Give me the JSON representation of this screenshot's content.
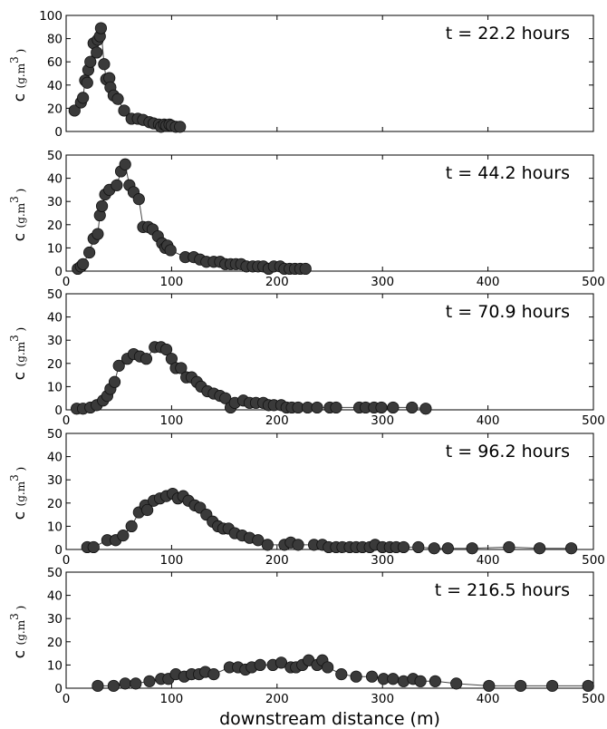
{
  "chart_data": {
    "type": "scatter",
    "xlabel": "downstream distance (m)",
    "ylabel": "c",
    "ylabel_unit": "(g.m",
    "ylabel_unit_exp": "3",
    "ylabel_unit_close": ")",
    "xlim": [
      0,
      500
    ],
    "xticks": [
      "0",
      "100",
      "200",
      "300",
      "400",
      "500"
    ],
    "marker_color": "#3a3a3a",
    "line_color": "#444444",
    "panels": [
      {
        "title": "t = 22.2 hours",
        "ylim": [
          0,
          100
        ],
        "yticks": [
          "0",
          "20",
          "40",
          "60",
          "80",
          "100"
        ],
        "show_xtick_labels": false,
        "points": [
          [
            8,
            18
          ],
          [
            14,
            25
          ],
          [
            16,
            29
          ],
          [
            18,
            44
          ],
          [
            20,
            42
          ],
          [
            21,
            53
          ],
          [
            23,
            60
          ],
          [
            26,
            76
          ],
          [
            29,
            68
          ],
          [
            30,
            79
          ],
          [
            32,
            82
          ],
          [
            33,
            89
          ],
          [
            36,
            58
          ],
          [
            38,
            45
          ],
          [
            41,
            46
          ],
          [
            42,
            38
          ],
          [
            45,
            31
          ],
          [
            49,
            28
          ],
          [
            55,
            18
          ],
          [
            62,
            11
          ],
          [
            68,
            11
          ],
          [
            73,
            10
          ],
          [
            79,
            8
          ],
          [
            83,
            7
          ],
          [
            88,
            6
          ],
          [
            90,
            4
          ],
          [
            93,
            6
          ],
          [
            95,
            5
          ],
          [
            98,
            6
          ],
          [
            100,
            5
          ],
          [
            104,
            4
          ],
          [
            108,
            4
          ]
        ]
      },
      {
        "title": "t = 44.2 hours",
        "ylim": [
          0,
          50
        ],
        "yticks": [
          "0",
          "10",
          "20",
          "30",
          "40",
          "50"
        ],
        "show_xtick_labels": true,
        "points": [
          [
            11,
            1
          ],
          [
            14,
            2
          ],
          [
            16,
            3
          ],
          [
            22,
            8
          ],
          [
            26,
            14
          ],
          [
            30,
            16
          ],
          [
            32,
            24
          ],
          [
            34,
            28
          ],
          [
            37,
            33
          ],
          [
            41,
            35
          ],
          [
            48,
            37
          ],
          [
            52,
            43
          ],
          [
            56,
            46
          ],
          [
            60,
            37
          ],
          [
            64,
            34
          ],
          [
            69,
            31
          ],
          [
            73,
            19
          ],
          [
            78,
            19
          ],
          [
            82,
            18
          ],
          [
            87,
            15
          ],
          [
            91,
            12
          ],
          [
            94,
            10
          ],
          [
            96,
            11
          ],
          [
            99,
            9
          ],
          [
            113,
            6
          ],
          [
            121,
            6
          ],
          [
            127,
            5
          ],
          [
            133,
            4
          ],
          [
            140,
            4
          ],
          [
            146,
            4
          ],
          [
            151,
            3
          ],
          [
            156,
            3
          ],
          [
            161,
            3
          ],
          [
            166,
            3
          ],
          [
            171,
            2
          ],
          [
            177,
            2
          ],
          [
            182,
            2
          ],
          [
            187,
            2
          ],
          [
            192,
            1
          ],
          [
            197,
            2
          ],
          [
            203,
            2
          ],
          [
            207,
            1
          ],
          [
            212,
            1
          ],
          [
            217,
            1
          ],
          [
            222,
            1
          ],
          [
            227,
            1
          ]
        ]
      },
      {
        "title": "t = 70.9 hours",
        "ylim": [
          0,
          50
        ],
        "yticks": [
          "0",
          "10",
          "20",
          "30",
          "40",
          "50"
        ],
        "show_xtick_labels": true,
        "points": [
          [
            10,
            0.5
          ],
          [
            16,
            0.5
          ],
          [
            23,
            1
          ],
          [
            29,
            2
          ],
          [
            35,
            4
          ],
          [
            39,
            6
          ],
          [
            42,
            9
          ],
          [
            46,
            12
          ],
          [
            50,
            19
          ],
          [
            58,
            22
          ],
          [
            64,
            24
          ],
          [
            70,
            23
          ],
          [
            76,
            22
          ],
          [
            84,
            27
          ],
          [
            90,
            27
          ],
          [
            95,
            26
          ],
          [
            100,
            22
          ],
          [
            104,
            18
          ],
          [
            109,
            18
          ],
          [
            114,
            14
          ],
          [
            119,
            14
          ],
          [
            124,
            12
          ],
          [
            128,
            10
          ],
          [
            134,
            8
          ],
          [
            140,
            7
          ],
          [
            146,
            6
          ],
          [
            151,
            5
          ],
          [
            156,
            1
          ],
          [
            160,
            3
          ],
          [
            168,
            4
          ],
          [
            174,
            3
          ],
          [
            180,
            3
          ],
          [
            187,
            3
          ],
          [
            192,
            2
          ],
          [
            197,
            2
          ],
          [
            204,
            2
          ],
          [
            209,
            1
          ],
          [
            214,
            1
          ],
          [
            220,
            1
          ],
          [
            229,
            1
          ],
          [
            238,
            1
          ],
          [
            250,
            1
          ],
          [
            256,
            1
          ],
          [
            278,
            1
          ],
          [
            284,
            1
          ],
          [
            292,
            1
          ],
          [
            299,
            1
          ],
          [
            310,
            1
          ],
          [
            328,
            1
          ],
          [
            341,
            0.5
          ]
        ]
      },
      {
        "title": "t = 96.2 hours",
        "ylim": [
          0,
          50
        ],
        "yticks": [
          "0",
          "10",
          "20",
          "30",
          "40",
          "50"
        ],
        "show_xtick_labels": true,
        "points": [
          [
            20,
            1
          ],
          [
            26,
            1
          ],
          [
            39,
            4
          ],
          [
            47,
            4
          ],
          [
            54,
            6
          ],
          [
            62,
            10
          ],
          [
            69,
            16
          ],
          [
            75,
            19
          ],
          [
            77,
            17
          ],
          [
            83,
            21
          ],
          [
            89,
            22
          ],
          [
            95,
            23
          ],
          [
            101,
            24
          ],
          [
            106,
            22
          ],
          [
            111,
            23
          ],
          [
            116,
            21
          ],
          [
            122,
            19
          ],
          [
            127,
            18
          ],
          [
            133,
            15
          ],
          [
            139,
            12
          ],
          [
            144,
            10
          ],
          [
            149,
            9
          ],
          [
            154,
            9
          ],
          [
            160,
            7
          ],
          [
            167,
            6
          ],
          [
            174,
            5
          ],
          [
            182,
            4
          ],
          [
            191,
            2
          ],
          [
            207,
            2
          ],
          [
            213,
            3
          ],
          [
            220,
            2
          ],
          [
            235,
            2
          ],
          [
            243,
            2
          ],
          [
            249,
            1
          ],
          [
            256,
            1
          ],
          [
            262,
            1
          ],
          [
            269,
            1
          ],
          [
            275,
            1
          ],
          [
            281,
            1
          ],
          [
            288,
            1
          ],
          [
            293,
            2
          ],
          [
            300,
            1
          ],
          [
            307,
            1
          ],
          [
            313,
            1
          ],
          [
            320,
            1
          ],
          [
            334,
            1
          ],
          [
            349,
            0.5
          ],
          [
            362,
            0.5
          ],
          [
            385,
            0.5
          ],
          [
            420,
            1
          ],
          [
            449,
            0.5
          ],
          [
            479,
            0.5
          ]
        ]
      },
      {
        "title": "t = 216.5 hours",
        "ylim": [
          0,
          50
        ],
        "yticks": [
          "0",
          "10",
          "20",
          "30",
          "40",
          "50"
        ],
        "show_xtick_labels": true,
        "points": [
          [
            30,
            1
          ],
          [
            45,
            1
          ],
          [
            56,
            2
          ],
          [
            66,
            2
          ],
          [
            79,
            3
          ],
          [
            90,
            4
          ],
          [
            97,
            4
          ],
          [
            104,
            6
          ],
          [
            112,
            5
          ],
          [
            119,
            6
          ],
          [
            126,
            6
          ],
          [
            132,
            7
          ],
          [
            140,
            6
          ],
          [
            155,
            9
          ],
          [
            163,
            9
          ],
          [
            170,
            8
          ],
          [
            176,
            9
          ],
          [
            184,
            10
          ],
          [
            196,
            10
          ],
          [
            204,
            11
          ],
          [
            213,
            9
          ],
          [
            218,
            9
          ],
          [
            224,
            10
          ],
          [
            230,
            12
          ],
          [
            238,
            10
          ],
          [
            243,
            12
          ],
          [
            248,
            9
          ],
          [
            261,
            6
          ],
          [
            275,
            5
          ],
          [
            290,
            5
          ],
          [
            301,
            4
          ],
          [
            310,
            4
          ],
          [
            320,
            3
          ],
          [
            329,
            4
          ],
          [
            336,
            3
          ],
          [
            350,
            3
          ],
          [
            370,
            2
          ],
          [
            401,
            1
          ],
          [
            431,
            1
          ],
          [
            461,
            1
          ],
          [
            495,
            1
          ]
        ]
      }
    ]
  }
}
